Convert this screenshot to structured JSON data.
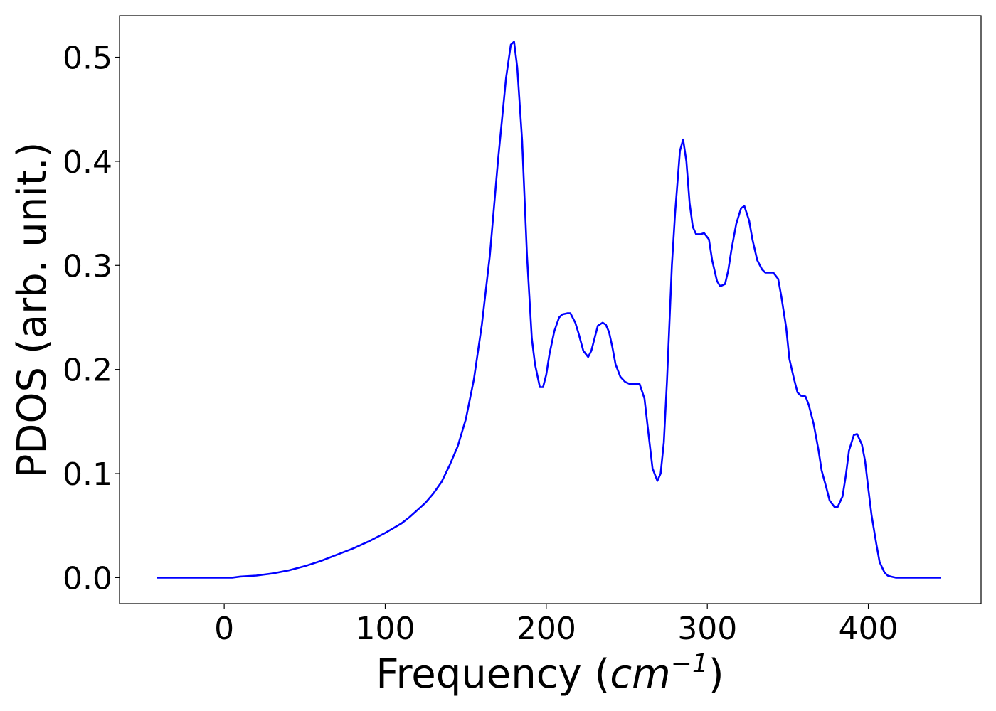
{
  "chart_data": {
    "type": "line",
    "title": "",
    "xlabel": "Frequency",
    "xlabel_unit_base": "cm",
    "xlabel_unit_exponent": "−1",
    "ylabel": "PDOS (arb. unit.)",
    "xlim": [
      -65,
      470
    ],
    "ylim": [
      -0.025,
      0.54
    ],
    "xticks": [
      0,
      100,
      200,
      300,
      400
    ],
    "xtick_labels": [
      "0",
      "100",
      "200",
      "300",
      "400"
    ],
    "yticks": [
      0.0,
      0.1,
      0.2,
      0.3,
      0.4,
      0.5
    ],
    "ytick_labels": [
      "0.0",
      "0.1",
      "0.2",
      "0.3",
      "0.4",
      "0.5"
    ],
    "grid": false,
    "legend": "none",
    "colors": {
      "line": "#0000ff",
      "axes": "#000000",
      "background": "#ffffff"
    },
    "series": [
      {
        "x": [
          -42,
          -20,
          0,
          5,
          10,
          20,
          30,
          40,
          50,
          60,
          70,
          80,
          90,
          100,
          110,
          115,
          120,
          125,
          130,
          135,
          140,
          145,
          150,
          155,
          160,
          165,
          170,
          175,
          178,
          180,
          182,
          185,
          188,
          191,
          193,
          196,
          198,
          200,
          202,
          205,
          208,
          210,
          213,
          215,
          218,
          220,
          223,
          226,
          228,
          230,
          232,
          235,
          237,
          239,
          241,
          243,
          246,
          249,
          252,
          255,
          258,
          261,
          263,
          266,
          269,
          271,
          273,
          275,
          278,
          280,
          283,
          285,
          287,
          289,
          291,
          293,
          296,
          298,
          301,
          303,
          306,
          308,
          311,
          313,
          315,
          318,
          321,
          323,
          326,
          328,
          331,
          334,
          336,
          339,
          341,
          344,
          346,
          349,
          351,
          354,
          356,
          358,
          361,
          363,
          366,
          369,
          371,
          374,
          376,
          379,
          381,
          384,
          386,
          388,
          391,
          393,
          396,
          398,
          400,
          402,
          405,
          407,
          410,
          412,
          414,
          417,
          420,
          430,
          445
        ],
        "y": [
          0.0,
          0.0,
          0.0,
          0.0,
          0.001,
          0.002,
          0.004,
          0.007,
          0.011,
          0.016,
          0.022,
          0.028,
          0.035,
          0.043,
          0.052,
          0.058,
          0.065,
          0.072,
          0.081,
          0.092,
          0.108,
          0.126,
          0.152,
          0.19,
          0.243,
          0.31,
          0.4,
          0.48,
          0.512,
          0.515,
          0.49,
          0.42,
          0.31,
          0.23,
          0.205,
          0.183,
          0.183,
          0.195,
          0.215,
          0.237,
          0.25,
          0.253,
          0.254,
          0.254,
          0.245,
          0.235,
          0.218,
          0.212,
          0.218,
          0.23,
          0.242,
          0.245,
          0.243,
          0.236,
          0.222,
          0.205,
          0.193,
          0.188,
          0.186,
          0.186,
          0.186,
          0.172,
          0.145,
          0.105,
          0.093,
          0.1,
          0.13,
          0.19,
          0.3,
          0.35,
          0.41,
          0.421,
          0.4,
          0.36,
          0.337,
          0.33,
          0.33,
          0.331,
          0.325,
          0.305,
          0.285,
          0.28,
          0.282,
          0.295,
          0.315,
          0.34,
          0.355,
          0.357,
          0.343,
          0.325,
          0.305,
          0.296,
          0.293,
          0.293,
          0.293,
          0.287,
          0.27,
          0.24,
          0.21,
          0.19,
          0.178,
          0.175,
          0.174,
          0.166,
          0.148,
          0.123,
          0.103,
          0.086,
          0.074,
          0.068,
          0.068,
          0.078,
          0.098,
          0.122,
          0.137,
          0.138,
          0.128,
          0.112,
          0.085,
          0.06,
          0.032,
          0.015,
          0.005,
          0.002,
          0.001,
          0.0,
          0.0,
          0.0,
          0.0
        ]
      }
    ]
  }
}
